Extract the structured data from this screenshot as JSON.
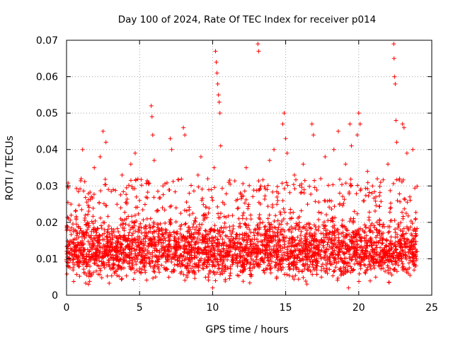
{
  "chart_data": {
    "type": "scatter",
    "title": "Day 100 of 2024, Rate Of TEC Index for receiver p014",
    "xlabel": "GPS time / hours",
    "ylabel": "ROTI / TECUs",
    "xlim": [
      0,
      25
    ],
    "ylim": [
      0,
      0.07
    ],
    "xticks": [
      0,
      5,
      10,
      15,
      20,
      25
    ],
    "xtick_labels": [
      "0",
      "5",
      "10",
      "15",
      "20",
      "25"
    ],
    "yticks": [
      0,
      0.01,
      0.02,
      0.03,
      0.04,
      0.05,
      0.06,
      0.07
    ],
    "ytick_labels": [
      "0",
      "0.01",
      "0.02",
      "0.03",
      "0.04",
      "0.05",
      "0.06",
      "0.07"
    ],
    "grid": true,
    "marker": "+",
    "color": "#ff0000",
    "series": [
      {
        "name": "ROTI",
        "points": [
          [
            0.1,
            0.012
          ],
          [
            0.3,
            0.025
          ],
          [
            0.5,
            0.018
          ],
          [
            0.8,
            0.009
          ],
          [
            1.0,
            0.032
          ],
          [
            1.1,
            0.04
          ],
          [
            1.3,
            0.022
          ],
          [
            1.5,
            0.003
          ],
          [
            1.7,
            0.027
          ],
          [
            1.9,
            0.035
          ],
          [
            2.1,
            0.015
          ],
          [
            2.3,
            0.038
          ],
          [
            2.5,
            0.045
          ],
          [
            2.7,
            0.042
          ],
          [
            2.9,
            0.019
          ],
          [
            3.2,
            0.029
          ],
          [
            3.5,
            0.008
          ],
          [
            3.8,
            0.033
          ],
          [
            4.1,
            0.021
          ],
          [
            4.4,
            0.036
          ],
          [
            4.7,
            0.039
          ],
          [
            5.0,
            0.026
          ],
          [
            5.3,
            0.014
          ],
          [
            5.6,
            0.031
          ],
          [
            5.8,
            0.052
          ],
          [
            5.85,
            0.049
          ],
          [
            5.9,
            0.044
          ],
          [
            6.0,
            0.037
          ],
          [
            6.3,
            0.018
          ],
          [
            6.6,
            0.03
          ],
          [
            6.9,
            0.011
          ],
          [
            7.1,
            0.043
          ],
          [
            7.2,
            0.04
          ],
          [
            7.5,
            0.024
          ],
          [
            7.8,
            0.006
          ],
          [
            8.0,
            0.046
          ],
          [
            8.1,
            0.044
          ],
          [
            8.4,
            0.028
          ],
          [
            8.7,
            0.016
          ],
          [
            9.0,
            0.033
          ],
          [
            9.2,
            0.038
          ],
          [
            9.5,
            0.022
          ],
          [
            9.7,
            0.005
          ],
          [
            9.9,
            0.029
          ],
          [
            10.0,
            0.002
          ],
          [
            10.1,
            0.035
          ],
          [
            10.2,
            0.067
          ],
          [
            10.25,
            0.064
          ],
          [
            10.3,
            0.061
          ],
          [
            10.35,
            0.058
          ],
          [
            10.4,
            0.055
          ],
          [
            10.45,
            0.053
          ],
          [
            10.5,
            0.05
          ],
          [
            10.55,
            0.041
          ],
          [
            10.8,
            0.025
          ],
          [
            11.1,
            0.031
          ],
          [
            11.4,
            0.019
          ],
          [
            11.7,
            0.008
          ],
          [
            12.0,
            0.027
          ],
          [
            12.3,
            0.035
          ],
          [
            12.6,
            0.022
          ],
          [
            12.9,
            0.014
          ],
          [
            13.1,
            0.069
          ],
          [
            13.15,
            0.067
          ],
          [
            13.3,
            0.03
          ],
          [
            13.6,
            0.018
          ],
          [
            13.9,
            0.037
          ],
          [
            14.2,
            0.04
          ],
          [
            14.5,
            0.028
          ],
          [
            14.8,
            0.047
          ],
          [
            14.9,
            0.05
          ],
          [
            15.0,
            0.043
          ],
          [
            15.1,
            0.039
          ],
          [
            15.3,
            0.021
          ],
          [
            15.6,
            0.033
          ],
          [
            15.9,
            0.007
          ],
          [
            16.2,
            0.036
          ],
          [
            16.5,
            0.025
          ],
          [
            16.8,
            0.047
          ],
          [
            16.9,
            0.044
          ],
          [
            17.1,
            0.015
          ],
          [
            17.4,
            0.032
          ],
          [
            17.7,
            0.038
          ],
          [
            18.0,
            0.026
          ],
          [
            18.3,
            0.04
          ],
          [
            18.6,
            0.045
          ],
          [
            18.9,
            0.019
          ],
          [
            19.1,
            0.036
          ],
          [
            19.3,
            0.002
          ],
          [
            19.4,
            0.047
          ],
          [
            19.5,
            0.041
          ],
          [
            19.7,
            0.023
          ],
          [
            19.9,
            0.044
          ],
          [
            20.0,
            0.05
          ],
          [
            20.1,
            0.047
          ],
          [
            20.3,
            0.013
          ],
          [
            20.6,
            0.034
          ],
          [
            20.9,
            0.028
          ],
          [
            21.2,
            0.018
          ],
          [
            21.5,
            0.031
          ],
          [
            21.8,
            0.009
          ],
          [
            22.0,
            0.036
          ],
          [
            22.2,
            0.024
          ],
          [
            22.4,
            0.069
          ],
          [
            22.42,
            0.065
          ],
          [
            22.45,
            0.06
          ],
          [
            22.5,
            0.058
          ],
          [
            22.55,
            0.048
          ],
          [
            22.6,
            0.042
          ],
          [
            22.8,
            0.032
          ],
          [
            23.0,
            0.047
          ],
          [
            23.1,
            0.046
          ],
          [
            23.3,
            0.039
          ],
          [
            23.5,
            0.027
          ],
          [
            23.7,
            0.04
          ],
          [
            23.9,
            0.021
          ],
          [
            24.0,
            0.012
          ]
        ],
        "cloud": {
          "count": 3200,
          "x_range": [
            0,
            24.0
          ],
          "baseline_range": [
            0.002,
            0.024
          ],
          "baseline_median": 0.012
        }
      }
    ]
  }
}
